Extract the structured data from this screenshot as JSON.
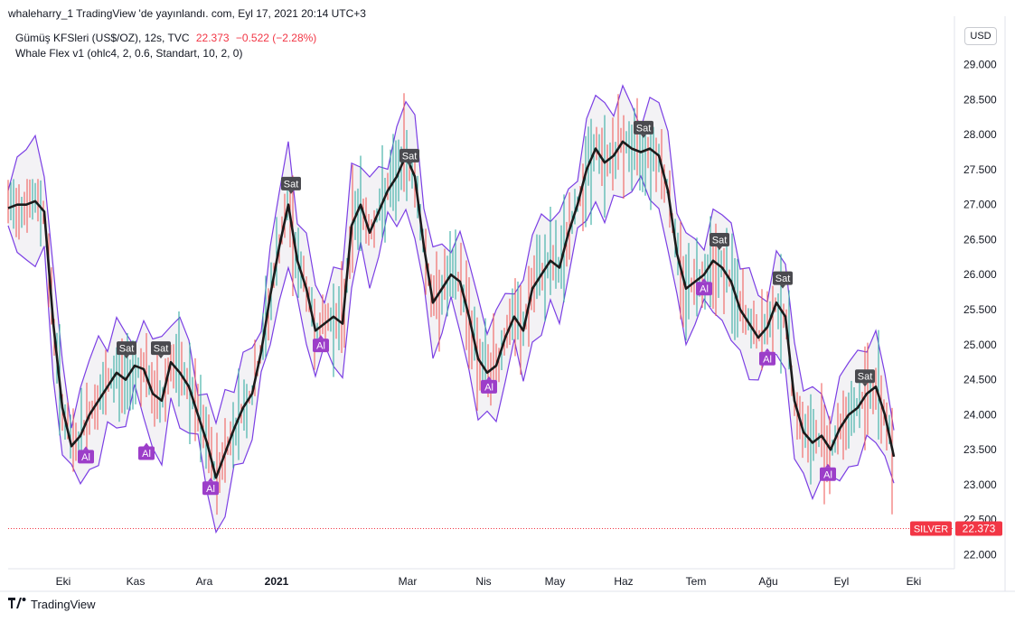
{
  "header": {
    "publish_line": "whaleharry_1 TradingView 'de yayınlandı. com, Eyl 17, 2021 20:14 UTC+3"
  },
  "legend": {
    "symbol": "Gümüş KFSleri (US$/OZ), 12s, TVC",
    "price": "22.373",
    "change": "−0.522 (−2.28%)",
    "indicator": "Whale Flex v1 (ohlc4, 2, 0.6, Standart, 10, 2, 0)"
  },
  "currency": "USD",
  "brand": {
    "name": "TradingView",
    "logo_icon": "tradingview-logo-icon"
  },
  "colors": {
    "band": "#7b3fe4",
    "ma": "#1b1b1b",
    "up": "#26a69a",
    "down": "#ef5350",
    "sell_badge": "#4a4a4f",
    "buy_badge": "#9c3ec9",
    "last_price": "#f23645"
  },
  "chart_data": {
    "type": "line",
    "title": "",
    "xlabel": "",
    "ylabel": "",
    "ylim": [
      21.8,
      29.6
    ],
    "y_ticks": [
      "22.000",
      "22.500",
      "23.000",
      "23.500",
      "24.000",
      "24.500",
      "25.000",
      "25.500",
      "26.000",
      "26.500",
      "27.000",
      "27.500",
      "28.000",
      "28.500",
      "29.000"
    ],
    "x_ticks": [
      "Eki",
      "Kas",
      "Ara",
      "2021",
      "Mar",
      "Nis",
      "May",
      "Haz",
      "Tem",
      "Ağu",
      "Eyl",
      "Eki"
    ],
    "last_price": {
      "label": "SILVER",
      "value": 22.373
    },
    "series": [
      {
        "name": "",
        "x": [
          0,
          10,
          20,
          30,
          40,
          50,
          60,
          70,
          80,
          90,
          100,
          110,
          120,
          130,
          140,
          150,
          160,
          170,
          180,
          190,
          200,
          210,
          220,
          230,
          240,
          250,
          260,
          270,
          280,
          290,
          300,
          310,
          320,
          330,
          340,
          350,
          360,
          370,
          380,
          390,
          400,
          410,
          420,
          430,
          440,
          450,
          460,
          470,
          480,
          490,
          500,
          510,
          520,
          530,
          540,
          550,
          560,
          570,
          580,
          590,
          600,
          610,
          620,
          630,
          640,
          650,
          660,
          670,
          680,
          690,
          700,
          710,
          720,
          730,
          740,
          750,
          760,
          770,
          780,
          790,
          800,
          810,
          820,
          830,
          840,
          850,
          860,
          870,
          880,
          890,
          900,
          910,
          920,
          930,
          940,
          950,
          960,
          970,
          980
        ],
        "values": [
          26.95,
          27.0,
          27.0,
          27.05,
          26.9,
          25.3,
          24.1,
          23.55,
          23.7,
          24.0,
          24.2,
          24.4,
          24.6,
          24.5,
          24.7,
          24.65,
          24.3,
          24.2,
          24.75,
          24.6,
          24.4,
          24.0,
          23.6,
          23.1,
          23.45,
          23.8,
          24.1,
          24.3,
          24.9,
          25.7,
          26.4,
          27.0,
          26.2,
          25.8,
          25.2,
          25.3,
          25.4,
          25.3,
          26.7,
          27.0,
          26.6,
          26.9,
          27.2,
          27.4,
          27.7,
          27.4,
          26.4,
          25.6,
          25.8,
          26.0,
          25.9,
          25.4,
          24.8,
          24.6,
          24.7,
          25.1,
          25.4,
          25.2,
          25.8,
          26.0,
          26.2,
          26.1,
          26.6,
          27.0,
          27.5,
          27.8,
          27.6,
          27.7,
          27.9,
          27.8,
          27.75,
          27.8,
          27.7,
          27.2,
          26.3,
          25.8,
          25.9,
          26.0,
          26.2,
          26.1,
          25.9,
          25.5,
          25.3,
          25.1,
          25.25,
          25.6,
          25.4,
          24.2,
          23.75,
          23.6,
          23.7,
          23.5,
          23.8,
          24.0,
          24.1,
          24.3,
          24.4,
          24.0,
          23.4
        ]
      }
    ],
    "signals": [
      {
        "label": "Sat",
        "x": 140,
        "y": 24.95
      },
      {
        "label": "Sat",
        "x": 178,
        "y": 24.95
      },
      {
        "label": "Sat",
        "x": 322,
        "y": 27.3
      },
      {
        "label": "Sat",
        "x": 453,
        "y": 27.7
      },
      {
        "label": "Sat",
        "x": 712,
        "y": 28.1
      },
      {
        "label": "Sat",
        "x": 796,
        "y": 26.5
      },
      {
        "label": "Sat",
        "x": 866,
        "y": 25.95
      },
      {
        "label": "Sat",
        "x": 957,
        "y": 24.55
      },
      {
        "label": "Al",
        "x": 95,
        "y": 23.4
      },
      {
        "label": "Al",
        "x": 162,
        "y": 23.45
      },
      {
        "label": "Al",
        "x": 233,
        "y": 22.95
      },
      {
        "label": "Al",
        "x": 355,
        "y": 24.99
      },
      {
        "label": "Al",
        "x": 541,
        "y": 24.4
      },
      {
        "label": "Al",
        "x": 779,
        "y": 25.8
      },
      {
        "label": "Al",
        "x": 849,
        "y": 24.8
      },
      {
        "label": "Al",
        "x": 916,
        "y": 23.15
      }
    ]
  }
}
